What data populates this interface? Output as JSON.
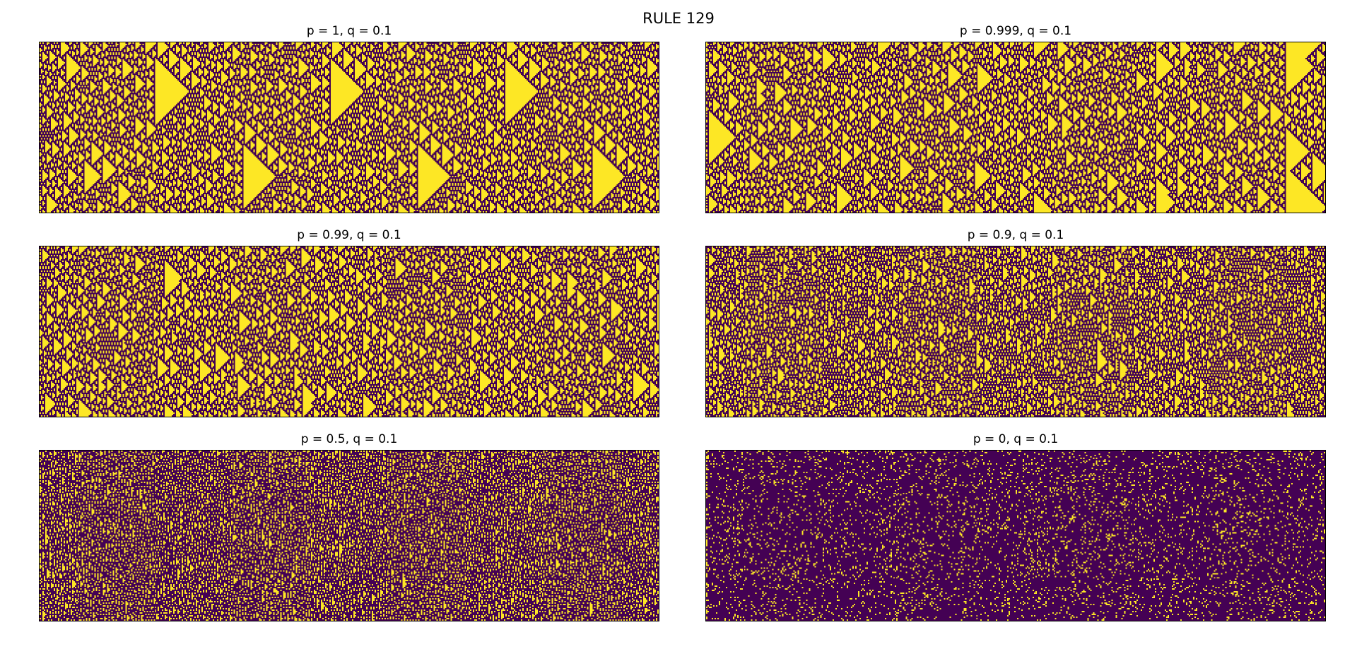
{
  "figure": {
    "title": "RULE 129",
    "colors": {
      "on": "#fde725",
      "off": "#440154",
      "border": "#000000"
    }
  },
  "panels": [
    {
      "title": "p = 1, q = 0.1",
      "p": 1,
      "q": 0.1
    },
    {
      "title": "p = 0.999, q = 0.1",
      "p": 0.999,
      "q": 0.1
    },
    {
      "title": "p = 0.99, q = 0.1",
      "p": 0.99,
      "q": 0.1
    },
    {
      "title": "p = 0.9, q = 0.1",
      "p": 0.9,
      "q": 0.1
    },
    {
      "title": "p = 0.5, q = 0.1",
      "p": 0.5,
      "q": 0.1
    },
    {
      "title": "p = 0, q = 0.1",
      "p": 0,
      "q": 0.1
    }
  ]
}
